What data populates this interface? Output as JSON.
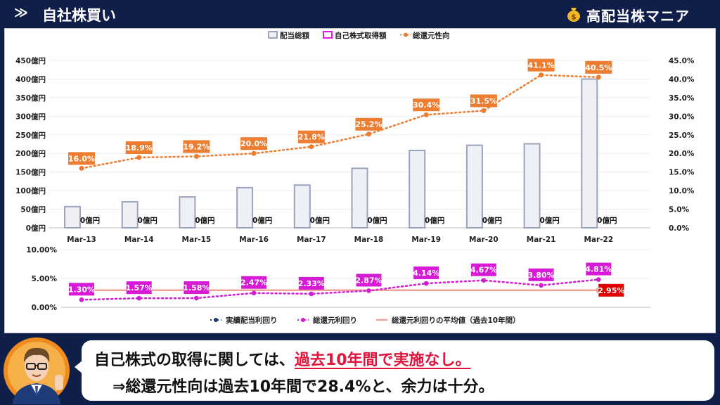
{
  "header": {
    "arrow": "≫",
    "title": "自社株買い",
    "brand": "高配当株マニア"
  },
  "colors": {
    "navy": "#101e4a",
    "bar_fill": "#eef0f5",
    "bar_stroke": "#9ba3bd",
    "buyback": "#e020e0",
    "payout": "#ec7d31",
    "dividend_yield": "#1f3864",
    "total_yield": "#d61ad6",
    "average": "#f2a09a",
    "average_label": "#e00000",
    "highlight": "#e0143c"
  },
  "chart_data": [
    {
      "type": "bar",
      "categories": [
        "Mar-13",
        "Mar-14",
        "Mar-15",
        "Mar-16",
        "Mar-17",
        "Mar-18",
        "Mar-19",
        "Mar-20",
        "Mar-21",
        "Mar-22"
      ],
      "legend": [
        "配当総額",
        "自己株式取得額",
        "総還元性向"
      ],
      "left_axis": {
        "ticks": [
          "0億円",
          "50億円",
          "100億円",
          "150億円",
          "200億円",
          "250億円",
          "300億円",
          "350億円",
          "400億円",
          "450億円"
        ],
        "ylim": [
          0,
          450
        ]
      },
      "right_axis": {
        "ticks": [
          "0.0%",
          "5.0%",
          "10.0%",
          "15.0%",
          "20.0%",
          "25.0%",
          "30.0%",
          "35.0%",
          "40.0%",
          "45.0%"
        ],
        "ylim": [
          0,
          45
        ]
      },
      "series": [
        {
          "name": "配当総額",
          "type": "bar",
          "axis": "left",
          "values": [
            57,
            70,
            83,
            108,
            115,
            160,
            208,
            222,
            226,
            400
          ]
        },
        {
          "name": "自己株式取得額",
          "type": "bar",
          "axis": "left",
          "values": [
            0,
            0,
            0,
            0,
            0,
            0,
            0,
            0,
            0,
            0
          ],
          "labels": [
            "0億円",
            "0億円",
            "0億円",
            "0億円",
            "0億円",
            "0億円",
            "0億円",
            "0億円",
            "0億円",
            "0億円"
          ]
        },
        {
          "name": "総還元性向",
          "type": "line",
          "axis": "right",
          "values": [
            16.0,
            18.9,
            19.2,
            20.0,
            21.8,
            25.2,
            30.4,
            31.5,
            41.1,
            40.5
          ],
          "labels": [
            "16.0%",
            "18.9%",
            "19.2%",
            "20.0%",
            "21.8%",
            "25.2%",
            "30.4%",
            "31.5%",
            "41.1%",
            "40.5%"
          ]
        }
      ]
    },
    {
      "type": "line",
      "categories": [
        "Mar-13",
        "Mar-14",
        "Mar-15",
        "Mar-16",
        "Mar-17",
        "Mar-18",
        "Mar-19",
        "Mar-20",
        "Mar-21",
        "Mar-22"
      ],
      "y_axis": {
        "ticks": [
          "0.00%",
          "5.00%",
          "10.00%"
        ],
        "ylim": [
          0,
          10
        ]
      },
      "legend": [
        "実績配当利回り",
        "総還元利回り",
        "総還元利回りの平均値（過去10年間）"
      ],
      "series": [
        {
          "name": "実績配当利回り",
          "values": [
            1.3,
            1.57,
            1.58,
            2.47,
            2.33,
            2.87,
            4.14,
            4.67,
            3.8,
            4.81
          ]
        },
        {
          "name": "総還元利回り",
          "values": [
            1.3,
            1.57,
            1.58,
            2.47,
            2.33,
            2.87,
            4.14,
            4.67,
            3.8,
            4.81
          ],
          "labels": [
            "1.30%",
            "1.57%",
            "1.58%",
            "2.47%",
            "2.33%",
            "2.87%",
            "4.14%",
            "4.67%",
            "3.80%",
            "4.81%"
          ]
        },
        {
          "name": "総還元利回りの平均値（過去10年間）",
          "values": [
            2.95,
            2.95,
            2.95,
            2.95,
            2.95,
            2.95,
            2.95,
            2.95,
            2.95,
            2.95
          ],
          "end_label": "2.95%"
        }
      ]
    }
  ],
  "caption": {
    "line1_prefix": "自己株式の取得に関しては、",
    "line1_highlight": "過去10年間で実施なし。",
    "line2": "⇒総還元性向は過去10年間で28.4%と、余力は十分。"
  }
}
